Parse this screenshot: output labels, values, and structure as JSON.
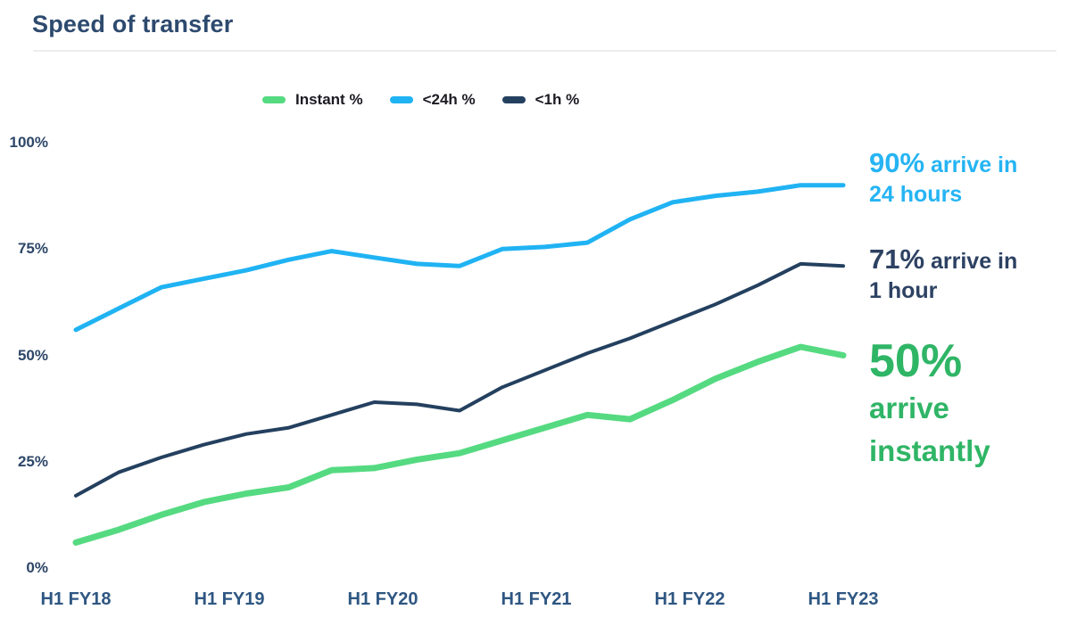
{
  "page": {
    "title": "Speed of transfer"
  },
  "chart_data": {
    "type": "line",
    "title": "Speed of transfer",
    "x_tick_labels": [
      "H1 FY18",
      "H1 FY19",
      "H1 FY20",
      "H1 FY21",
      "H1 FY22",
      "H1 FY23"
    ],
    "y_tick_labels": [
      "0%",
      "25%",
      "50%",
      "75%",
      "100%"
    ],
    "y_tick_values": [
      0,
      25,
      50,
      75,
      100
    ],
    "ylim": [
      0,
      100
    ],
    "grid": false,
    "legend_position": "top",
    "x_range_note": "19 evenly spaced samples from H1 FY18 to H1 FY23",
    "series": [
      {
        "name": "Instant %",
        "color": "#55da81",
        "stroke_width": 7,
        "values": [
          6,
          9,
          12.5,
          15.5,
          17.5,
          19,
          23,
          23.5,
          25.5,
          27,
          30,
          33,
          36,
          35,
          39.5,
          44.5,
          48.5,
          52,
          50
        ]
      },
      {
        "name": "<24h %",
        "color": "#20b3f3",
        "stroke_width": 5,
        "values": [
          56,
          61,
          66,
          68,
          70,
          72.5,
          74.5,
          73,
          71.5,
          71,
          75,
          75.5,
          76.5,
          82,
          86,
          87.5,
          88.5,
          90,
          90
        ]
      },
      {
        "name": "<1h %",
        "color": "#24405f",
        "stroke_width": 4,
        "values": [
          17,
          22.5,
          26,
          29,
          31.5,
          33,
          36,
          39,
          38.5,
          37,
          42.5,
          46.5,
          50.5,
          54,
          58,
          62,
          66.5,
          71.5,
          71
        ]
      }
    ]
  },
  "annotations": {
    "h24": {
      "value": "90%",
      "line1_rest": "arrive in",
      "line2": "24 hours",
      "color": "#25b4f3"
    },
    "h1": {
      "value": "71%",
      "line1_rest": "arrive in",
      "line2": "1 hour",
      "color": "#2d4263"
    },
    "instant": {
      "value": "50%",
      "line1": "arrive",
      "line2": "instantly",
      "color": "#2fb566"
    }
  }
}
